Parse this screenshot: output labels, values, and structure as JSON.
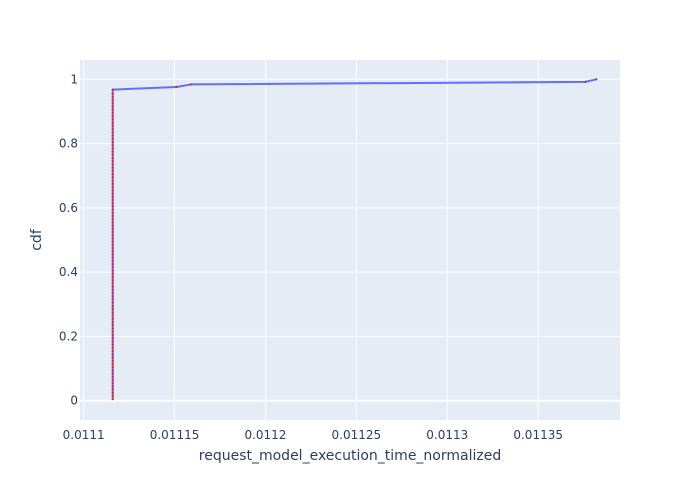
{
  "chart_data": {
    "type": "line",
    "title": "",
    "xlabel": "request_model_execution_time_normalized",
    "ylabel": "cdf",
    "xlim": [
      0.011098,
      0.011395
    ],
    "ylim": [
      -0.06,
      1.06
    ],
    "x_ticks": [
      {
        "value": 0.0111,
        "label": "0.0111"
      },
      {
        "value": 0.01115,
        "label": "0.01115"
      },
      {
        "value": 0.0112,
        "label": "0.0112"
      },
      {
        "value": 0.01125,
        "label": "0.01125"
      },
      {
        "value": 0.0113,
        "label": "0.0113"
      },
      {
        "value": 0.01135,
        "label": "0.01135"
      }
    ],
    "y_ticks": [
      {
        "value": 0,
        "label": "0"
      },
      {
        "value": 0.2,
        "label": "0.2"
      },
      {
        "value": 0.4,
        "label": "0.4"
      },
      {
        "value": 0.6,
        "label": "0.6"
      },
      {
        "value": 0.8,
        "label": "0.8"
      },
      {
        "value": 1,
        "label": "1"
      }
    ],
    "grid": true,
    "colors": {
      "line": "#636efa",
      "markers": "#d62728",
      "plot_bg": "#e5ecf6",
      "grid": "#ffffff",
      "text": "#2a3f5f"
    },
    "series": [
      {
        "x": [
          0.011116,
          0.011116,
          0.011116,
          0.011116,
          0.011116,
          0.011116,
          0.011116,
          0.011116,
          0.011116,
          0.011116,
          0.011116,
          0.011116,
          0.011116,
          0.011116,
          0.011116,
          0.011116,
          0.011116,
          0.011116,
          0.011116,
          0.011116,
          0.011116,
          0.011116,
          0.011116,
          0.011116,
          0.011116,
          0.011116,
          0.011116,
          0.011116,
          0.011116,
          0.011116,
          0.011116,
          0.011116,
          0.011116,
          0.011116,
          0.011116,
          0.011116,
          0.011116,
          0.011116,
          0.011116,
          0.011116,
          0.011116,
          0.011116,
          0.011116,
          0.011116,
          0.011116,
          0.011116,
          0.011116,
          0.011116,
          0.011116,
          0.011116,
          0.011116,
          0.011116,
          0.011116,
          0.011116,
          0.011116,
          0.011116,
          0.011116,
          0.011116,
          0.011116,
          0.011116,
          0.011116,
          0.011116,
          0.011116,
          0.011116,
          0.011116,
          0.011116,
          0.011116,
          0.011116,
          0.011116,
          0.011116,
          0.011116,
          0.011116,
          0.011116,
          0.011116,
          0.011116,
          0.011116,
          0.011116,
          0.011116,
          0.011116,
          0.011116,
          0.011116,
          0.011116,
          0.011116,
          0.011116,
          0.011116,
          0.011116,
          0.011116,
          0.011116,
          0.011116,
          0.011116,
          0.011116,
          0.011116,
          0.011116,
          0.011116,
          0.011116,
          0.011116,
          0.011116,
          0.011151,
          0.011159,
          0.011376,
          0.011382
        ],
        "y": [
          0.005,
          0.015,
          0.025,
          0.035,
          0.045,
          0.055,
          0.065,
          0.075,
          0.085,
          0.095,
          0.105,
          0.115,
          0.125,
          0.135,
          0.145,
          0.155,
          0.165,
          0.175,
          0.185,
          0.195,
          0.205,
          0.215,
          0.225,
          0.235,
          0.245,
          0.255,
          0.265,
          0.275,
          0.285,
          0.295,
          0.305,
          0.315,
          0.325,
          0.335,
          0.345,
          0.355,
          0.365,
          0.375,
          0.385,
          0.395,
          0.405,
          0.415,
          0.425,
          0.435,
          0.445,
          0.455,
          0.465,
          0.475,
          0.485,
          0.495,
          0.505,
          0.515,
          0.525,
          0.535,
          0.545,
          0.555,
          0.565,
          0.575,
          0.585,
          0.595,
          0.605,
          0.615,
          0.625,
          0.635,
          0.645,
          0.655,
          0.665,
          0.675,
          0.685,
          0.695,
          0.705,
          0.715,
          0.725,
          0.735,
          0.745,
          0.755,
          0.765,
          0.775,
          0.785,
          0.795,
          0.805,
          0.815,
          0.825,
          0.835,
          0.845,
          0.855,
          0.865,
          0.875,
          0.885,
          0.895,
          0.905,
          0.915,
          0.925,
          0.935,
          0.945,
          0.955,
          0.968,
          0.976,
          0.984,
          0.992,
          1.0
        ]
      }
    ]
  }
}
